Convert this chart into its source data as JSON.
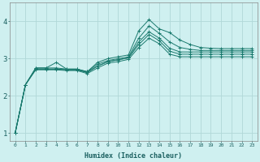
{
  "xlabel": "Humidex (Indice chaleur)",
  "ylabel": "",
  "background_color": "#cff0f0",
  "grid_color": "#b0d8d8",
  "line_color": "#1a7a6e",
  "xlim": [
    -0.5,
    23.5
  ],
  "ylim": [
    0.8,
    4.5
  ],
  "xtick_labels": [
    "0",
    "1",
    "2",
    "3",
    "4",
    "5",
    "6",
    "7",
    "8",
    "9",
    "10",
    "11",
    "12",
    "13",
    "14",
    "15",
    "16",
    "17",
    "18",
    "19",
    "20",
    "21",
    "22",
    "23"
  ],
  "ytick_labels": [
    "1",
    "2",
    "3",
    "4"
  ],
  "ytick_values": [
    1,
    2,
    3,
    4
  ],
  "series": [
    [
      1.0,
      2.3,
      2.75,
      2.75,
      2.9,
      2.72,
      2.72,
      2.65,
      2.9,
      3.0,
      3.05,
      3.1,
      3.75,
      4.05,
      3.8,
      3.7,
      3.5,
      3.38,
      3.3,
      3.28,
      3.27,
      3.27,
      3.27,
      3.27
    ],
    [
      1.0,
      2.3,
      2.75,
      2.75,
      2.75,
      2.72,
      2.72,
      2.65,
      2.85,
      2.95,
      3.0,
      3.05,
      3.55,
      3.88,
      3.68,
      3.45,
      3.3,
      3.25,
      3.22,
      3.22,
      3.22,
      3.22,
      3.22,
      3.22
    ],
    [
      1.0,
      2.3,
      2.72,
      2.72,
      2.72,
      2.7,
      2.7,
      2.63,
      2.8,
      2.92,
      2.97,
      3.02,
      3.45,
      3.72,
      3.55,
      3.28,
      3.18,
      3.18,
      3.18,
      3.18,
      3.18,
      3.18,
      3.18,
      3.18
    ],
    [
      1.0,
      2.3,
      2.72,
      2.72,
      2.72,
      2.7,
      2.7,
      2.63,
      2.8,
      2.92,
      2.97,
      3.02,
      3.38,
      3.65,
      3.48,
      3.2,
      3.12,
      3.12,
      3.12,
      3.12,
      3.12,
      3.12,
      3.12,
      3.12
    ],
    [
      1.0,
      2.3,
      2.7,
      2.7,
      2.7,
      2.68,
      2.68,
      2.6,
      2.75,
      2.88,
      2.92,
      2.98,
      3.3,
      3.55,
      3.4,
      3.12,
      3.05,
      3.05,
      3.05,
      3.05,
      3.05,
      3.05,
      3.05,
      3.05
    ]
  ]
}
